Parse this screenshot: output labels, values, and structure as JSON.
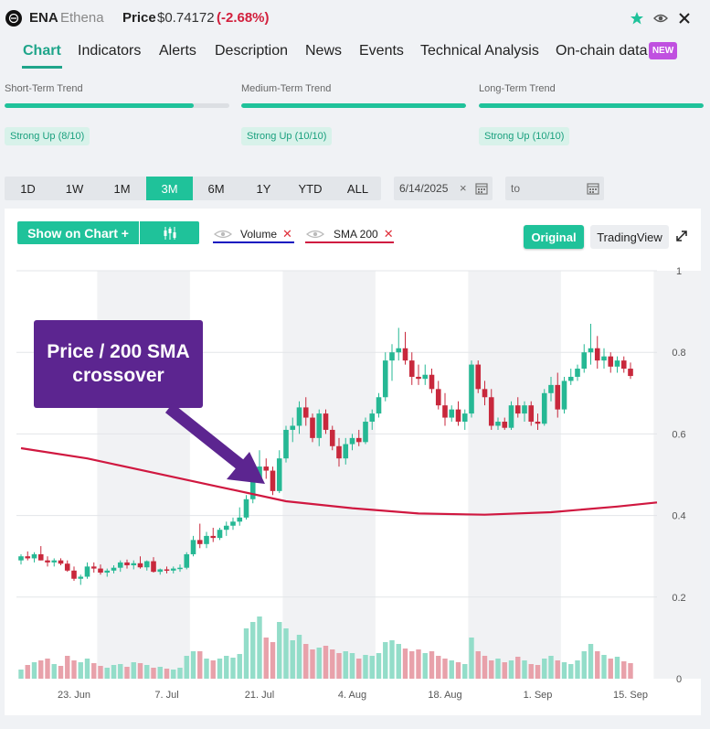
{
  "header": {
    "symbol": "ENA",
    "name": "Ethena",
    "price_label": "Price",
    "price": "$0.74172",
    "change": "(-2.68%)",
    "icons": [
      "star-icon",
      "eye-icon",
      "close-icon"
    ]
  },
  "tabs": [
    {
      "label": "Chart"
    },
    {
      "label": "Indicators"
    },
    {
      "label": "Alerts"
    },
    {
      "label": "Description"
    },
    {
      "label": "News"
    },
    {
      "label": "Events"
    },
    {
      "label": "Technical Analysis"
    },
    {
      "label": "On-chain data"
    }
  ],
  "new_badge": "NEW",
  "trends": [
    {
      "label": "Short-Term Trend",
      "badge": "Strong Up (8/10)",
      "fill": 0.84
    },
    {
      "label": "Medium-Term Trend",
      "badge": "Strong Up (10/10)",
      "fill": 1.0
    },
    {
      "label": "Long-Term Trend",
      "badge": "Strong Up (10/10)",
      "fill": 1.0
    }
  ],
  "ranges": [
    "1D",
    "1W",
    "1M",
    "3M",
    "6M",
    "1Y",
    "YTD",
    "ALL"
  ],
  "active_range": "3M",
  "date_from": "6/14/2025",
  "date_to_placeholder": "to",
  "toolbar": {
    "show_on_chart": "Show on Chart +",
    "volume_label": "Volume",
    "sma_label": "SMA 200",
    "original": "Original",
    "tradingview": "TradingView"
  },
  "colors": {
    "accent": "#1fc29a",
    "up": "#26b894",
    "down": "#c8283c",
    "sma": "#d01840",
    "volume_line": "#1010c0",
    "annotation": "#5c2590"
  },
  "annotation": "Price / 200 SMA crossover",
  "chart_data": {
    "type": "candlestick",
    "ylim": [
      0,
      1
    ],
    "y_ticks": [
      "1",
      "0.8",
      "0.6",
      "0.4",
      "0.2",
      "0"
    ],
    "x_ticks": [
      "23. Jun",
      "7. Jul",
      "21. Jul",
      "4. Aug",
      "18. Aug",
      "1. Sep",
      "15. Sep"
    ],
    "start_date": "2025-06-15",
    "candles": [
      [
        0.29,
        0.305,
        0.28,
        0.3
      ],
      [
        0.3,
        0.312,
        0.29,
        0.295
      ],
      [
        0.295,
        0.31,
        0.285,
        0.305
      ],
      [
        0.305,
        0.325,
        0.29,
        0.29
      ],
      [
        0.29,
        0.3,
        0.275,
        0.285
      ],
      [
        0.285,
        0.295,
        0.275,
        0.29
      ],
      [
        0.29,
        0.295,
        0.278,
        0.282
      ],
      [
        0.282,
        0.29,
        0.262,
        0.265
      ],
      [
        0.265,
        0.275,
        0.24,
        0.245
      ],
      [
        0.245,
        0.255,
        0.23,
        0.25
      ],
      [
        0.25,
        0.285,
        0.245,
        0.275
      ],
      [
        0.275,
        0.285,
        0.26,
        0.27
      ],
      [
        0.27,
        0.28,
        0.255,
        0.26
      ],
      [
        0.26,
        0.27,
        0.25,
        0.265
      ],
      [
        0.265,
        0.278,
        0.258,
        0.272
      ],
      [
        0.272,
        0.29,
        0.262,
        0.285
      ],
      [
        0.285,
        0.292,
        0.27,
        0.278
      ],
      [
        0.278,
        0.29,
        0.268,
        0.283
      ],
      [
        0.283,
        0.3,
        0.27,
        0.273
      ],
      [
        0.273,
        0.29,
        0.265,
        0.288
      ],
      [
        0.288,
        0.298,
        0.26,
        0.262
      ],
      [
        0.262,
        0.27,
        0.255,
        0.268
      ],
      [
        0.268,
        0.275,
        0.258,
        0.265
      ],
      [
        0.265,
        0.275,
        0.258,
        0.27
      ],
      [
        0.27,
        0.28,
        0.262,
        0.272
      ],
      [
        0.272,
        0.31,
        0.268,
        0.305
      ],
      [
        0.305,
        0.35,
        0.3,
        0.34
      ],
      [
        0.34,
        0.38,
        0.32,
        0.33
      ],
      [
        0.33,
        0.36,
        0.32,
        0.35
      ],
      [
        0.35,
        0.37,
        0.335,
        0.345
      ],
      [
        0.345,
        0.37,
        0.34,
        0.365
      ],
      [
        0.365,
        0.385,
        0.35,
        0.375
      ],
      [
        0.375,
        0.395,
        0.365,
        0.385
      ],
      [
        0.385,
        0.42,
        0.375,
        0.395
      ],
      [
        0.395,
        0.45,
        0.39,
        0.44
      ],
      [
        0.44,
        0.505,
        0.43,
        0.49
      ],
      [
        0.49,
        0.56,
        0.48,
        0.52
      ],
      [
        0.52,
        0.54,
        0.49,
        0.51
      ],
      [
        0.51,
        0.52,
        0.45,
        0.46
      ],
      [
        0.46,
        0.56,
        0.455,
        0.54
      ],
      [
        0.54,
        0.62,
        0.53,
        0.61
      ],
      [
        0.61,
        0.64,
        0.58,
        0.62
      ],
      [
        0.62,
        0.68,
        0.6,
        0.665
      ],
      [
        0.665,
        0.69,
        0.62,
        0.64
      ],
      [
        0.64,
        0.65,
        0.58,
        0.59
      ],
      [
        0.59,
        0.66,
        0.57,
        0.65
      ],
      [
        0.65,
        0.66,
        0.6,
        0.61
      ],
      [
        0.61,
        0.62,
        0.56,
        0.57
      ],
      [
        0.57,
        0.59,
        0.52,
        0.54
      ],
      [
        0.54,
        0.59,
        0.525,
        0.575
      ],
      [
        0.575,
        0.6,
        0.56,
        0.59
      ],
      [
        0.59,
        0.61,
        0.57,
        0.58
      ],
      [
        0.58,
        0.64,
        0.575,
        0.63
      ],
      [
        0.63,
        0.66,
        0.61,
        0.65
      ],
      [
        0.65,
        0.7,
        0.64,
        0.69
      ],
      [
        0.69,
        0.8,
        0.68,
        0.78
      ],
      [
        0.78,
        0.82,
        0.73,
        0.8
      ],
      [
        0.8,
        0.86,
        0.78,
        0.81
      ],
      [
        0.81,
        0.85,
        0.77,
        0.78
      ],
      [
        0.78,
        0.8,
        0.72,
        0.74
      ],
      [
        0.74,
        0.77,
        0.72,
        0.735
      ],
      [
        0.735,
        0.77,
        0.72,
        0.745
      ],
      [
        0.745,
        0.76,
        0.7,
        0.71
      ],
      [
        0.71,
        0.73,
        0.66,
        0.67
      ],
      [
        0.67,
        0.7,
        0.62,
        0.64
      ],
      [
        0.64,
        0.67,
        0.63,
        0.66
      ],
      [
        0.66,
        0.68,
        0.62,
        0.63
      ],
      [
        0.63,
        0.66,
        0.61,
        0.65
      ],
      [
        0.65,
        0.78,
        0.64,
        0.77
      ],
      [
        0.77,
        0.78,
        0.7,
        0.71
      ],
      [
        0.71,
        0.73,
        0.67,
        0.69
      ],
      [
        0.69,
        0.71,
        0.61,
        0.62
      ],
      [
        0.62,
        0.64,
        0.61,
        0.63
      ],
      [
        0.63,
        0.64,
        0.61,
        0.615
      ],
      [
        0.615,
        0.68,
        0.61,
        0.67
      ],
      [
        0.67,
        0.69,
        0.64,
        0.65
      ],
      [
        0.65,
        0.68,
        0.63,
        0.67
      ],
      [
        0.67,
        0.68,
        0.62,
        0.63
      ],
      [
        0.63,
        0.65,
        0.61,
        0.625
      ],
      [
        0.625,
        0.71,
        0.62,
        0.7
      ],
      [
        0.7,
        0.74,
        0.68,
        0.72
      ],
      [
        0.72,
        0.75,
        0.64,
        0.66
      ],
      [
        0.66,
        0.74,
        0.65,
        0.73
      ],
      [
        0.73,
        0.76,
        0.72,
        0.74
      ],
      [
        0.74,
        0.77,
        0.73,
        0.76
      ],
      [
        0.76,
        0.82,
        0.75,
        0.8
      ],
      [
        0.8,
        0.87,
        0.77,
        0.81
      ],
      [
        0.81,
        0.84,
        0.76,
        0.78
      ],
      [
        0.78,
        0.81,
        0.76,
        0.79
      ],
      [
        0.79,
        0.8,
        0.75,
        0.765
      ],
      [
        0.765,
        0.79,
        0.75,
        0.78
      ],
      [
        0.78,
        0.79,
        0.75,
        0.76
      ],
      [
        0.76,
        0.775,
        0.735,
        0.742
      ]
    ],
    "volume": [
      0.1,
      0.15,
      0.18,
      0.2,
      0.22,
      0.16,
      0.14,
      0.25,
      0.2,
      0.18,
      0.22,
      0.17,
      0.14,
      0.12,
      0.15,
      0.16,
      0.13,
      0.18,
      0.17,
      0.15,
      0.12,
      0.13,
      0.11,
      0.1,
      0.12,
      0.25,
      0.3,
      0.3,
      0.22,
      0.2,
      0.22,
      0.25,
      0.23,
      0.27,
      0.55,
      0.62,
      0.68,
      0.45,
      0.4,
      0.62,
      0.55,
      0.42,
      0.48,
      0.38,
      0.32,
      0.34,
      0.36,
      0.32,
      0.28,
      0.3,
      0.28,
      0.22,
      0.26,
      0.25,
      0.28,
      0.4,
      0.42,
      0.38,
      0.33,
      0.3,
      0.32,
      0.28,
      0.3,
      0.25,
      0.22,
      0.2,
      0.18,
      0.16,
      0.45,
      0.3,
      0.25,
      0.2,
      0.22,
      0.18,
      0.2,
      0.24,
      0.2,
      0.16,
      0.15,
      0.22,
      0.25,
      0.2,
      0.18,
      0.16,
      0.2,
      0.3,
      0.38,
      0.3,
      0.26,
      0.22,
      0.24,
      0.19,
      0.17
    ],
    "sma200": [
      [
        0,
        0.565
      ],
      [
        10,
        0.54
      ],
      [
        20,
        0.505
      ],
      [
        30,
        0.47
      ],
      [
        40,
        0.435
      ],
      [
        50,
        0.418
      ],
      [
        60,
        0.405
      ],
      [
        70,
        0.402
      ],
      [
        80,
        0.408
      ],
      [
        90,
        0.422
      ],
      [
        96,
        0.432
      ]
    ]
  }
}
